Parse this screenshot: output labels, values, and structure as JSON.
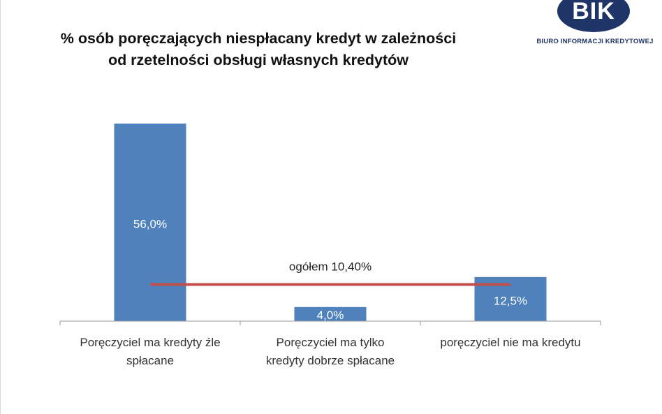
{
  "title_lines": [
    "% osób poręczających niespłacany kredyt w zależności",
    "od rzetelności obsługi własnych kredytów"
  ],
  "logo": {
    "mark": "BIK",
    "name": "BIURO INFORMACJI KREDYTOWEJ",
    "color": "#1f3567"
  },
  "chart_data": {
    "type": "bar",
    "categories": [
      [
        "Poręczyciel ma kredyty źle",
        "spłacane"
      ],
      [
        "Poręczyciel ma tylko",
        "kredyty dobrze spłacane"
      ],
      [
        "poręczyciel nie ma kredytu"
      ]
    ],
    "values": [
      56.0,
      4.0,
      12.5
    ],
    "data_labels": [
      "56,0%",
      "4,0%",
      "12,5%"
    ],
    "bar_color": "#4f81bd",
    "reference_line": {
      "value": 10.4,
      "label": "ogółem 10,40%",
      "color": "#c0504d"
    },
    "ylim": [
      0,
      56
    ],
    "grid": false,
    "legend": "none",
    "xlabel": "",
    "ylabel": ""
  }
}
